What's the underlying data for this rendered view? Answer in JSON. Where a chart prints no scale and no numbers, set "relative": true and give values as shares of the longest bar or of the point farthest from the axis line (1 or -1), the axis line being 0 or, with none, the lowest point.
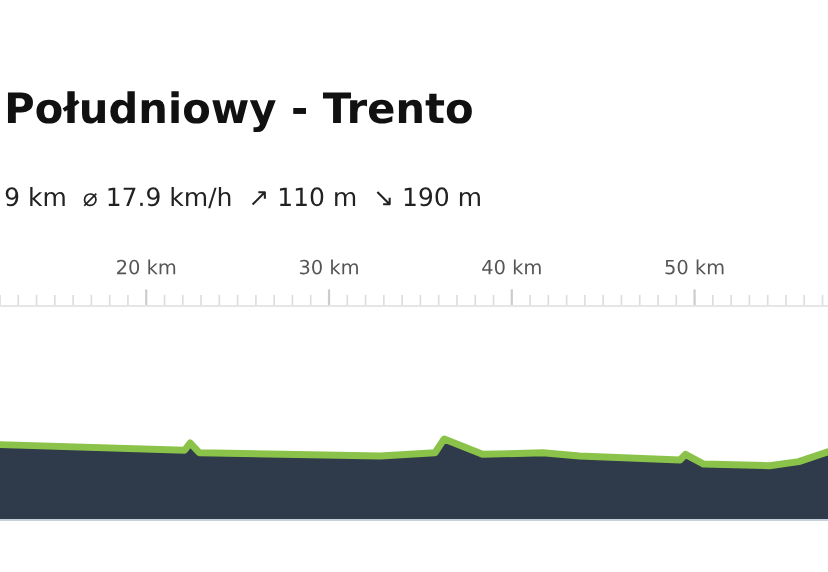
{
  "chart_data": {
    "type": "area",
    "title": "Południowy - Trento",
    "subtitle": "9 km  ⌀ 17.9 km/h  ↗ 110 m  ↘ 190 m",
    "relative": true,
    "x": [
      12.0,
      22.1,
      22.4,
      22.9,
      32.8,
      35.8,
      36.3,
      38.4,
      41.7,
      43.7,
      49.2,
      49.5,
      50.5,
      54.1,
      55.7,
      57.3
    ],
    "series": [
      {
        "color": "#8bc34a",
        "values": [
          0.93,
          0.86,
          0.95,
          0.83,
          0.79,
          0.83,
          1,
          0.81,
          0.83,
          0.79,
          0.74,
          0.81,
          0.69,
          0.67,
          0.72,
          0.84
        ]
      }
    ],
    "xlim": [
      12.0,
      57.3
    ],
    "xticks": [
      {
        "value": 20,
        "label": "20 km"
      },
      {
        "value": 30,
        "label": "30 km"
      },
      {
        "value": 40,
        "label": "40 km"
      },
      {
        "value": 50,
        "label": "50 km"
      }
    ],
    "grid": false,
    "legend": false
  }
}
